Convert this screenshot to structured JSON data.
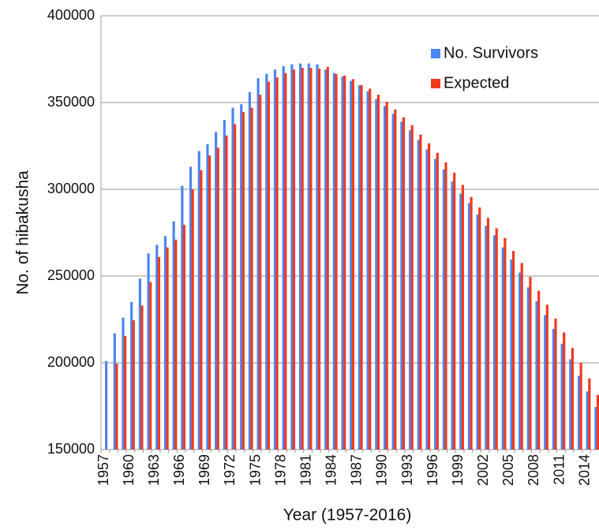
{
  "chart_data": {
    "type": "bar",
    "xlabel": "Year (1957-2016)",
    "ylabel": "No. of hibakusha",
    "categories": [
      "1957",
      null,
      null,
      "1960",
      null,
      null,
      "1963",
      null,
      null,
      "1966",
      null,
      null,
      "1969",
      null,
      null,
      "1972",
      null,
      null,
      "1975",
      null,
      null,
      "1978",
      null,
      null,
      "1981",
      null,
      null,
      "1984",
      null,
      null,
      "1987",
      null,
      null,
      "1990",
      null,
      null,
      "1993",
      null,
      null,
      "1996",
      null,
      null,
      "1999",
      null,
      null,
      "2002",
      null,
      null,
      "2005",
      null,
      null,
      "2008",
      null,
      null,
      "2011",
      null,
      null,
      "2014",
      null
    ],
    "series": [
      {
        "name": "No. Survivors",
        "color": "#4a86f0",
        "values": [
          201000,
          217000,
          226000,
          235000,
          248500,
          263000,
          268000,
          273000,
          281500,
          302000,
          313000,
          322000,
          326000,
          333000,
          340000,
          347000,
          349000,
          356000,
          364000,
          366500,
          369000,
          371000,
          372000,
          372500,
          372500,
          372000,
          369000,
          367000,
          365000,
          362500,
          360000,
          356500,
          352000,
          348000,
          343500,
          339000,
          334000,
          328500,
          323000,
          317500,
          311500,
          304500,
          297500,
          292000,
          285500,
          279000,
          273500,
          266500,
          259500,
          252000,
          243500,
          235500,
          227500,
          219500,
          211000,
          202000,
          192500,
          183500,
          174500
        ]
      },
      {
        "name": "Expected",
        "color": "#f03a1e",
        "values": [
          null,
          199500,
          215500,
          224500,
          233000,
          246500,
          261000,
          266500,
          271000,
          279500,
          300000,
          311000,
          319500,
          324000,
          331000,
          337500,
          344500,
          347000,
          354500,
          362000,
          364500,
          367000,
          369000,
          370000,
          370000,
          369500,
          370500,
          366500,
          365500,
          363500,
          360000,
          358000,
          354500,
          350500,
          346000,
          341500,
          337000,
          331500,
          326500,
          321000,
          315500,
          309500,
          302500,
          295500,
          289500,
          283500,
          277500,
          272000,
          264500,
          257500,
          249500,
          241500,
          233500,
          225500,
          217500,
          208500,
          200000,
          191000,
          181500
        ]
      }
    ],
    "ylim": [
      150000,
      400000
    ],
    "yticks": [
      150000,
      200000,
      250000,
      300000,
      350000,
      400000
    ],
    "grid": true,
    "legend": "upper right"
  }
}
